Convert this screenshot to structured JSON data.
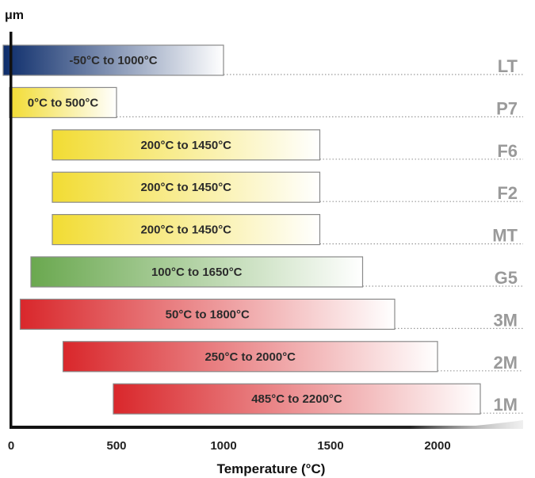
{
  "chart_data": {
    "type": "bar",
    "orientation": "horizontal",
    "y_unit_label": "μm",
    "xlabel": "Temperature (°C)",
    "xlim": [
      0,
      2300
    ],
    "xticks": [
      0,
      500,
      1000,
      1500,
      2000
    ],
    "grid": false,
    "legend": "none",
    "series": [
      {
        "name": "LT",
        "start": -50,
        "end": 1000,
        "label": "-50°C to 1000°C",
        "color": "#0d2d6b"
      },
      {
        "name": "P7",
        "start": 0,
        "end": 500,
        "label": "0°C to 500°C",
        "color": "#f2dc33"
      },
      {
        "name": "F6",
        "start": 200,
        "end": 1450,
        "label": "200°C to 1450°C",
        "color": "#f2dc33"
      },
      {
        "name": "F2",
        "start": 200,
        "end": 1450,
        "label": "200°C to 1450°C",
        "color": "#f2dc33"
      },
      {
        "name": "MT",
        "start": 200,
        "end": 1450,
        "label": "200°C to 1450°C",
        "color": "#f2dc33"
      },
      {
        "name": "G5",
        "start": 100,
        "end": 1650,
        "label": "100°C to 1650°C",
        "color": "#6aa84f"
      },
      {
        "name": "3M",
        "start": 50,
        "end": 1800,
        "label": "50°C to 1800°C",
        "color": "#d9272b"
      },
      {
        "name": "2M",
        "start": 250,
        "end": 2000,
        "label": "250°C to 2000°C",
        "color": "#d9272b"
      },
      {
        "name": "1M",
        "start": 485,
        "end": 2200,
        "label": "485°C to 2200°C",
        "color": "#d9272b"
      }
    ]
  }
}
